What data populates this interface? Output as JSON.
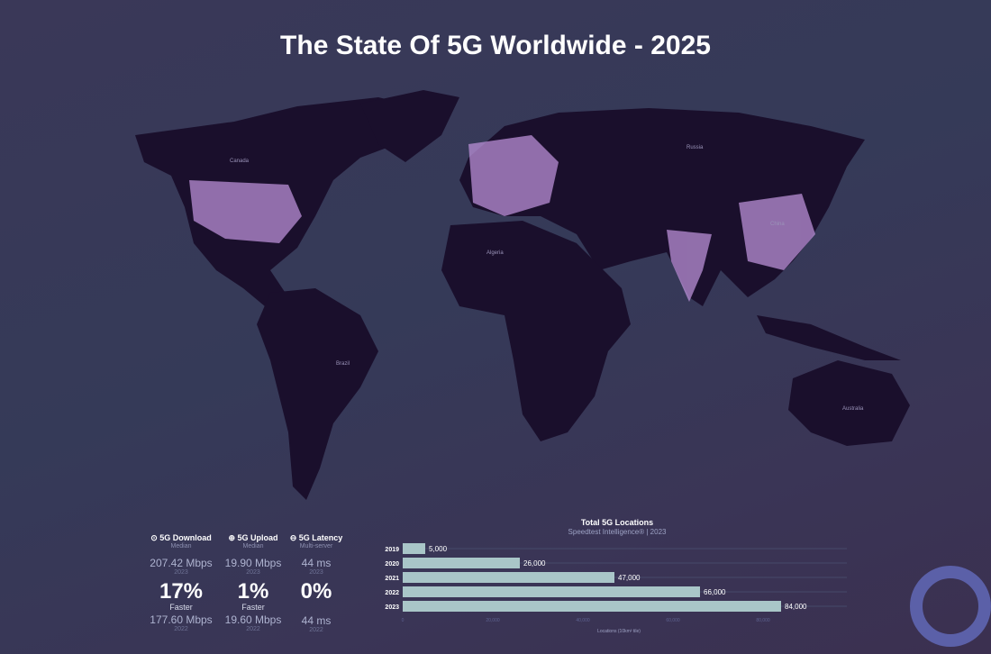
{
  "title": "The State Of 5G Worldwide - 2025",
  "map": {
    "land_color": "#1a0f2c",
    "coverage_color": "#b98fd6",
    "country_labels": [
      "Canada",
      "Russia",
      "Brazil",
      "Australia",
      "Algeria",
      "China"
    ]
  },
  "stats": [
    {
      "icon": "download-icon",
      "label": "5G Download",
      "sub": "Median",
      "current": "207.42 Mbps",
      "current_year": "2023",
      "change": "17%",
      "change_label": "Faster",
      "previous": "177.60 Mbps",
      "previous_year": "2022"
    },
    {
      "icon": "upload-icon",
      "label": "5G Upload",
      "sub": "Median",
      "current": "19.90 Mbps",
      "current_year": "2023",
      "change": "1%",
      "change_label": "Faster",
      "previous": "19.60 Mbps",
      "previous_year": "2022"
    },
    {
      "icon": "latency-icon",
      "label": "5G Latency",
      "sub": "Multi-server",
      "current": "44 ms",
      "current_year": "2023",
      "change": "0%",
      "change_label": "",
      "previous": "44 ms",
      "previous_year": "2022"
    }
  ],
  "chart_data": {
    "type": "bar",
    "orientation": "horizontal",
    "title": "Total 5G Locations",
    "subtitle": "Speedtest Intelligence® | 2023",
    "categories": [
      "2019",
      "2020",
      "2021",
      "2022",
      "2023"
    ],
    "values": [
      5000,
      26000,
      47000,
      66000,
      84000
    ],
    "data_labels": [
      "5,000",
      "26,000",
      "47,000",
      "66,000",
      "84,000"
    ],
    "xlabel": "Locations (10km² tile)",
    "xticks": [
      "0",
      "20,000",
      "40,000",
      "60,000",
      "80,000"
    ],
    "xlim": [
      0,
      88000
    ],
    "bar_color": "#a9c6c8"
  }
}
